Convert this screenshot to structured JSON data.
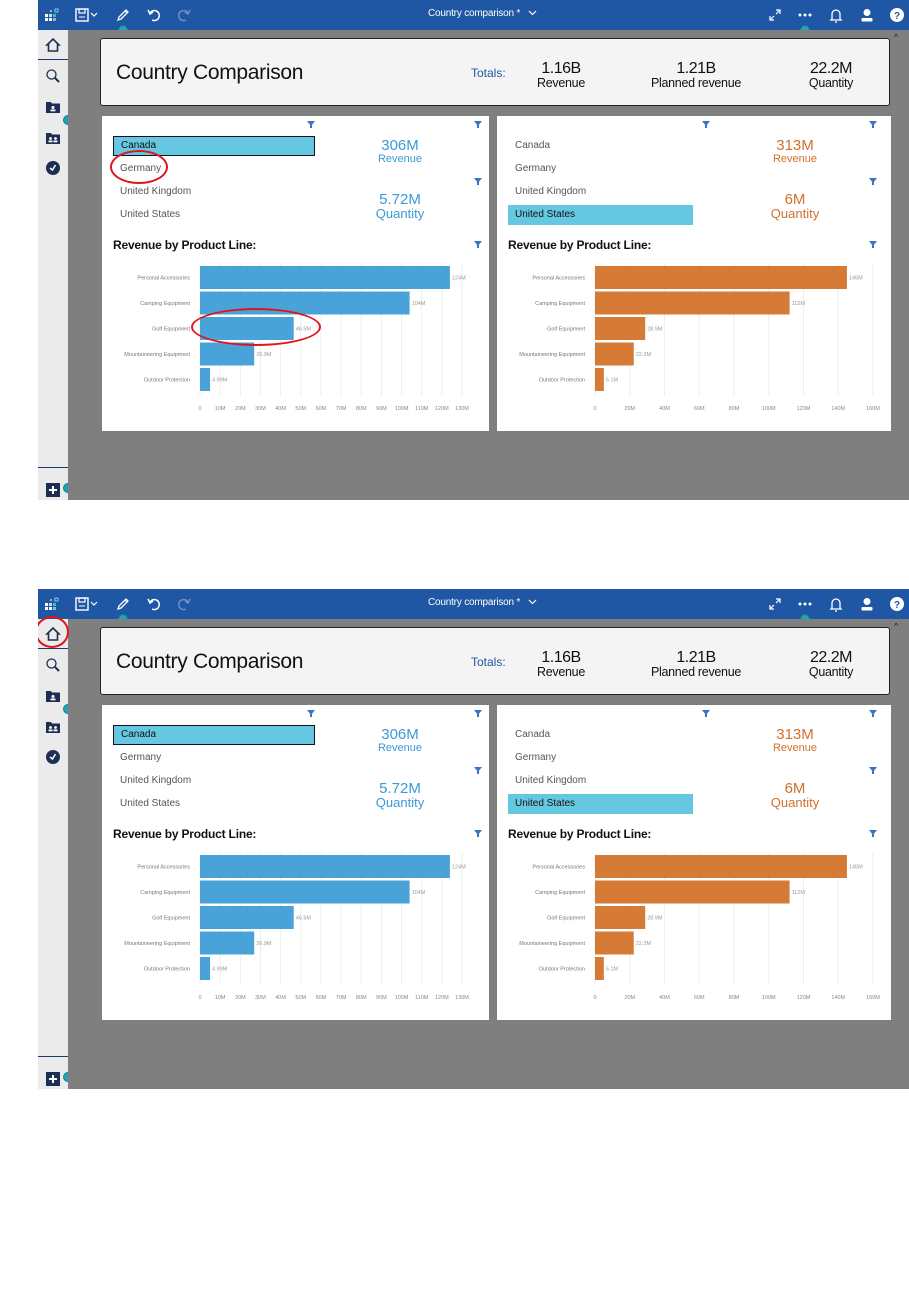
{
  "colors": {
    "topbar": "#1f57a4",
    "accent_blue": "#4aa3d8",
    "accent_orange": "#d67b36",
    "selection": "#66c8e0",
    "annotation_ring": "#e0141b"
  },
  "topbar": {
    "title": "Country comparison *",
    "icons": [
      "app-logo-icon",
      "save-icon",
      "chevron-down-icon",
      "edit-pencil-icon",
      "undo-icon",
      "redo-icon",
      "fullscreen-icon",
      "more-options-icon",
      "notification-bell-icon",
      "user-icon",
      "help-icon"
    ]
  },
  "sidebar": {
    "items": [
      {
        "name": "home",
        "icon": "home-icon"
      },
      {
        "name": "search",
        "icon": "search-icon"
      },
      {
        "name": "my-content",
        "icon": "personal-folder-icon"
      },
      {
        "name": "team-content",
        "icon": "team-folder-icon"
      },
      {
        "name": "recent",
        "icon": "recent-clock-icon"
      }
    ],
    "add_button": {
      "icon": "plus-icon"
    }
  },
  "header": {
    "title": "Country Comparison",
    "totals_label": "Totals:",
    "kpis": [
      {
        "value": "1.16B",
        "label": "Revenue"
      },
      {
        "value": "1.21B",
        "label": "Planned revenue"
      },
      {
        "value": "22.2M",
        "label": "Quantity"
      }
    ]
  },
  "panels": {
    "left": {
      "countries": [
        "Canada",
        "Germany",
        "United Kingdom",
        "United States"
      ],
      "selected": "Canada",
      "revenue": {
        "value": "306M",
        "label": "Revenue"
      },
      "quantity": {
        "value": "5.72M",
        "label": "Quantity"
      },
      "chart_title": "Revenue by Product Line:"
    },
    "right": {
      "countries": [
        "Canada",
        "Germany",
        "United Kingdom",
        "United States"
      ],
      "selected": "United States",
      "revenue": {
        "value": "313M",
        "label": "Revenue"
      },
      "quantity": {
        "value": "6M",
        "label": "Quantity"
      },
      "chart_title": "Revenue by Product Line:"
    }
  },
  "annotations": {
    "step1": [
      "Germany list item circled",
      "Golf Equipment bar circled"
    ],
    "step2": [
      "Home icon circled"
    ]
  },
  "chart_data": [
    {
      "type": "bar",
      "orientation": "horizontal",
      "title": "Revenue by Product Line: (Canada)",
      "categories": [
        "Personal Accessories",
        "Camping Equipment",
        "Golf Equipment",
        "Mountaineering Equipment",
        "Outdoor Protection"
      ],
      "values": [
        124,
        104,
        46.5,
        26.9,
        4.99
      ],
      "data_labels": [
        "124M",
        "104M",
        "46.5M",
        "26.9M",
        "4.99M"
      ],
      "units": "M",
      "xlim": [
        0,
        130
      ],
      "xticks": [
        "0",
        "10M",
        "20M",
        "30M",
        "40M",
        "50M",
        "60M",
        "70M",
        "80M",
        "90M",
        "100M",
        "110M",
        "120M",
        "130M"
      ],
      "color": "#4aa3d8",
      "grid": true
    },
    {
      "type": "bar",
      "orientation": "horizontal",
      "title": "Revenue by Product Line: (United States)",
      "categories": [
        "Personal Accessories",
        "Camping Equipment",
        "Golf Equipment",
        "Mountaineering Equipment",
        "Outdoor Protection"
      ],
      "values": [
        145,
        112,
        28.9,
        22.3,
        5.1
      ],
      "data_labels": [
        "145M",
        "112M",
        "28.9M",
        "22.3M",
        "5.1M"
      ],
      "units": "M",
      "xlim": [
        0,
        160
      ],
      "xticks": [
        "0",
        "20M",
        "40M",
        "60M",
        "80M",
        "100M",
        "120M",
        "140M",
        "160M"
      ],
      "color": "#d67b36",
      "grid": true
    }
  ]
}
